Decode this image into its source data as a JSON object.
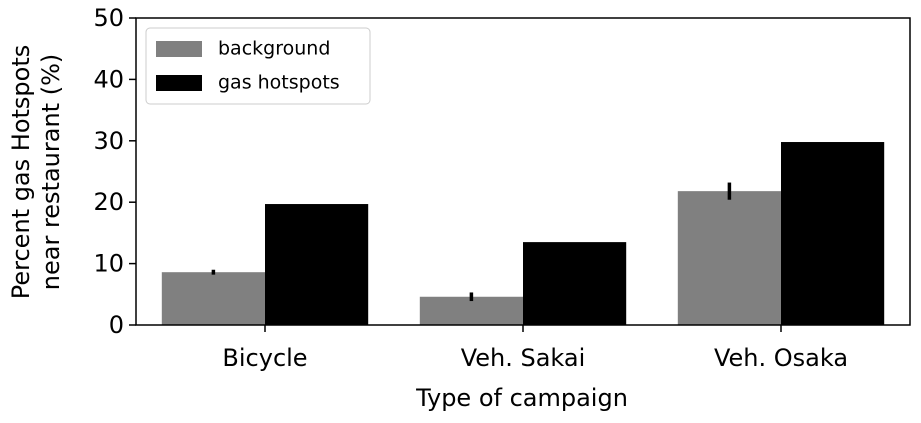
{
  "chart_data": {
    "type": "bar",
    "xlabel": "Type of campaign",
    "ylabel": [
      "Percent gas Hotspots",
      "near restaurant (%)"
    ],
    "categories": [
      "Bicycle",
      "Veh. Sakai",
      "Veh. Osaka"
    ],
    "series": [
      {
        "name": "background",
        "color": "#808080",
        "values": [
          8.6,
          4.6,
          21.8
        ],
        "errors": [
          0.4,
          0.7,
          1.4
        ]
      },
      {
        "name": "gas hotspots",
        "color": "#000000",
        "values": [
          19.7,
          13.5,
          29.8
        ]
      }
    ],
    "ylim": [
      0,
      50
    ],
    "yticks": [
      0,
      10,
      20,
      30,
      40,
      50
    ],
    "legend": "upper left"
  }
}
